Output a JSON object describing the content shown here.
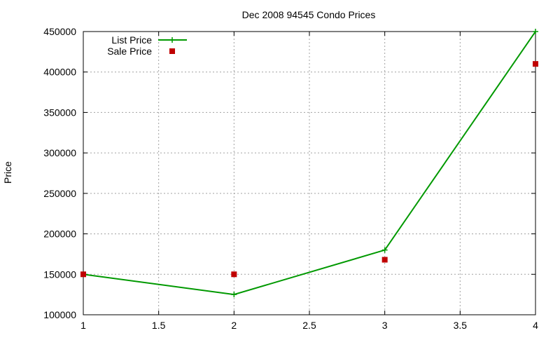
{
  "chart_data": {
    "type": "line",
    "title": "Dec 2008 94545 Condo Prices",
    "xlabel": "",
    "ylabel": "Price",
    "xlim": [
      1,
      4
    ],
    "ylim": [
      100000,
      450000
    ],
    "x_ticks": [
      1,
      1.5,
      2,
      2.5,
      3,
      3.5,
      4
    ],
    "x_tick_labels": [
      "1",
      "1.5",
      "2",
      "2.5",
      "3",
      "3.5",
      "4"
    ],
    "y_ticks": [
      100000,
      150000,
      200000,
      250000,
      300000,
      350000,
      400000,
      450000
    ],
    "y_tick_labels": [
      "100000",
      "150000",
      "200000",
      "250000",
      "300000",
      "350000",
      "400000",
      "450000"
    ],
    "grid": true,
    "legend_position": "top-left",
    "series": [
      {
        "name": "List Price",
        "style": "lines+points",
        "marker": "plus",
        "color": "#009900",
        "x": [
          1,
          2,
          3,
          4
        ],
        "y": [
          150000,
          125000,
          180000,
          450000
        ]
      },
      {
        "name": "Sale Price",
        "style": "points",
        "marker": "square",
        "color": "#c00000",
        "x": [
          1,
          2,
          3,
          4
        ],
        "y": [
          150000,
          150000,
          168000,
          410000
        ]
      }
    ]
  }
}
